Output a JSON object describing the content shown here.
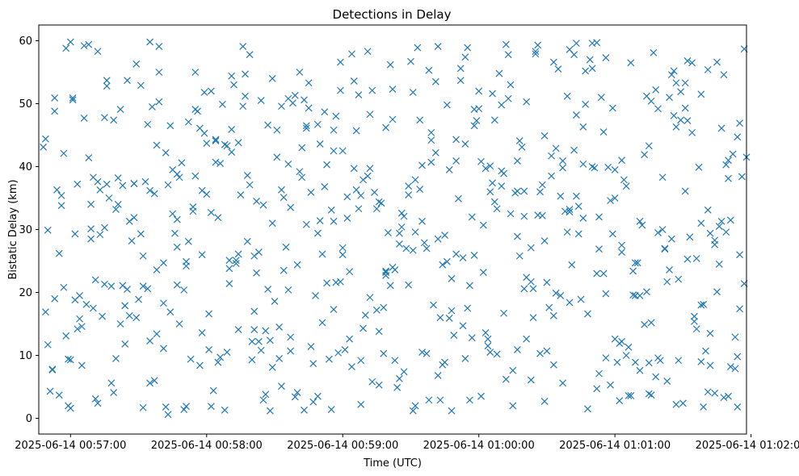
{
  "chart_data": {
    "type": "scatter",
    "title": "Detections in Delay",
    "xlabel": "Time (UTC)",
    "ylabel": "Bistatic Delay (km)",
    "marker": "x",
    "color": "#1f77b4",
    "grid": false,
    "legend": "none",
    "x_tick_labels": [
      "2025-06-14 00:57:00",
      "2025-06-14 00:58:00",
      "2025-06-14 00:59:00",
      "2025-06-14 01:00:00",
      "2025-06-14 01:01:00",
      "2025-06-14 01:02:00"
    ],
    "y_ticks": [
      0,
      10,
      20,
      30,
      40,
      50,
      60
    ],
    "xlim": [
      "2025-06-14 00:56:46",
      "2025-06-14 01:01:58"
    ],
    "ylim": [
      -2.5,
      62.5
    ],
    "x": [
      "00:56:49",
      "00:57:00",
      "00:57:12",
      "00:57:23",
      "00:57:35",
      "00:57:47",
      "00:57:58",
      "00:58:10",
      "00:58:21",
      "00:58:33",
      "00:58:44",
      "00:58:56",
      "00:59:08",
      "00:59:19",
      "00:59:31",
      "00:59:42",
      "00:59:54",
      "01:00:05",
      "01:00:17",
      "01:00:29",
      "01:00:40",
      "01:00:52",
      "01:01:03",
      "01:01:15",
      "01:01:27",
      "01:01:38",
      "01:01:50",
      "00:56:53",
      "00:57:05",
      "00:57:16",
      "00:57:28",
      "00:57:39",
      "00:57:51",
      "00:58:02",
      "00:58:14",
      "00:58:26",
      "00:58:37",
      "00:58:49",
      "00:59:00",
      "00:59:12",
      "00:59:23",
      "00:59:35",
      "00:59:47",
      "00:59:58",
      "01:00:10",
      "01:00:21",
      "01:00:33",
      "01:00:44",
      "01:00:56",
      "01:01:08",
      "01:01:19",
      "01:01:31",
      "01:01:42",
      "01:01:54",
      "00:56:57",
      "00:57:09",
      "00:57:20",
      "00:57:32",
      "00:57:43",
      "00:57:55",
      "00:58:06",
      "00:58:18",
      "00:58:29",
      "00:58:41",
      "00:58:53",
      "00:59:04",
      "00:59:16",
      "00:59:27",
      "00:59:39",
      "00:59:50",
      "01:00:02",
      "01:00:14",
      "01:00:25",
      "01:00:37",
      "01:00:48",
      "01:01:00",
      "01:01:11",
      "01:01:23",
      "01:01:35",
      "01:01:46",
      "01:01:57",
      "00:57:02",
      "00:57:14",
      "00:57:25",
      "00:57:37",
      "00:57:48",
      "00:58:00",
      "00:58:11",
      "00:58:23",
      "00:58:35",
      "00:58:46",
      "00:58:58",
      "00:59:09",
      "00:59:21",
      "00:59:32",
      "00:59:44",
      "00:59:56",
      "01:00:07",
      "01:00:19",
      "01:00:30",
      "01:00:42",
      "01:00:53",
      "01:01:05",
      "01:01:16",
      "01:01:28",
      "01:01:40",
      "01:01:51",
      "00:56:55",
      "00:57:07",
      "00:57:18",
      "00:57:30",
      "00:57:41",
      "00:57:53",
      "00:58:04",
      "00:58:16",
      "00:58:28",
      "00:58:39",
      "00:58:51",
      "00:59:02",
      "00:59:14",
      "00:59:25",
      "00:59:37",
      "00:59:48",
      "01:00:00",
      "01:00:12",
      "01:00:23",
      "01:00:35",
      "01:00:46",
      "01:00:58",
      "01:01:09",
      "01:01:21",
      "01:01:32",
      "01:01:44",
      "01:01:55",
      "00:56:51",
      "00:57:03",
      "00:57:15",
      "00:57:26",
      "00:57:38",
      "00:57:49",
      "00:58:01",
      "00:58:12",
      "00:58:24",
      "00:58:36",
      "00:58:47",
      "00:58:59",
      "00:59:10",
      "00:59:22",
      "00:59:33",
      "00:59:45",
      "00:59:56",
      "01:00:08",
      "01:00:20",
      "01:00:31",
      "01:00:43",
      "01:00:54",
      "01:01:06",
      "01:01:17",
      "01:01:29",
      "01:01:41",
      "01:01:52",
      "00:56:58",
      "00:57:10",
      "00:57:21",
      "00:57:33",
      "00:57:44",
      "00:57:56",
      "00:58:08",
      "00:58:19",
      "00:58:31",
      "00:58:42",
      "00:58:54",
      "00:59:05",
      "00:59:17",
      "00:59:29",
      "00:59:40",
      "00:59:52",
      "01:00:03",
      "01:00:15",
      "01:00:26",
      "01:00:38",
      "01:00:50",
      "01:01:01",
      "01:01:13",
      "01:01:24",
      "01:01:36",
      "01:01:47",
      "00:56:50",
      "00:57:01",
      "00:57:13",
      "00:57:24",
      "00:57:36",
      "00:57:47",
      "00:57:59",
      "00:58:11",
      "00:58:22",
      "00:58:34",
      "00:58:45",
      "00:58:57",
      "00:59:08",
      "00:59:20",
      "00:59:32",
      "00:59:43",
      "00:59:55",
      "01:00:06",
      "01:00:18",
      "01:00:29",
      "01:00:41",
      "01:00:53",
      "01:01:04",
      "01:01:16",
      "01:01:27",
      "01:01:39",
      "01:01:50",
      "00:56:54",
      "00:57:06",
      "00:57:17",
      "00:57:29",
      "00:57:41",
      "00:57:52",
      "00:58:04",
      "00:58:15",
      "00:58:27",
      "00:58:38",
      "00:58:50",
      "00:59:01",
      "00:59:13",
      "00:59:25",
      "00:59:36",
      "00:59:48",
      "00:59:59",
      "01:00:11",
      "01:00:23",
      "01:00:34",
      "01:00:46",
      "01:00:57",
      "01:01:09",
      "01:01:20",
      "01:01:32",
      "01:01:44",
      "01:01:55",
      "00:56:59",
      "00:57:11",
      "00:57:22",
      "00:57:34",
      "00:57:45",
      "00:57:57",
      "00:58:09",
      "00:58:20",
      "00:58:32",
      "00:58:43",
      "00:58:55",
      "00:59:06",
      "00:59:18",
      "00:59:29",
      "00:59:41",
      "00:59:53",
      "01:00:04",
      "01:00:16",
      "01:00:27",
      "01:00:39",
      "01:00:50",
      "01:01:02",
      "01:01:14",
      "01:01:25",
      "01:01:37",
      "01:01:48",
      "00:56:52",
      "00:57:04",
      "00:57:15",
      "00:57:27",
      "00:57:38",
      "00:57:50",
      "00:58:02",
      "00:58:13",
      "00:58:25",
      "00:58:36",
      "00:58:48",
      "00:58:59",
      "00:59:11",
      "00:59:22",
      "00:59:34",
      "00:59:46",
      "00:59:57",
      "01:00:09",
      "01:00:20",
      "01:00:32",
      "01:00:43",
      "01:00:55",
      "01:01:07",
      "01:01:18",
      "01:01:30",
      "01:01:41",
      "01:01:53",
      "00:56:56",
      "00:57:08",
      "00:57:19",
      "00:57:31",
      "00:57:42",
      "00:57:54",
      "00:58:05",
      "00:58:17",
      "00:58:29",
      "00:58:40",
      "00:58:52",
      "00:59:03",
      "00:59:15",
      "00:59:26",
      "00:59:38",
      "00:59:50",
      "01:00:01",
      "01:00:13",
      "01:00:24",
      "01:00:36",
      "01:00:47",
      "01:00:59",
      "01:01:11",
      "01:01:22",
      "01:01:34",
      "01:01:45",
      "01:01:56",
      "00:57:01",
      "00:57:12",
      "00:57:24",
      "00:57:35",
      "00:57:47",
      "00:57:59",
      "00:58:10",
      "00:58:22",
      "00:58:33",
      "00:58:45",
      "00:58:56",
      "00:59:08",
      "00:59:19",
      "00:59:31",
      "00:59:43",
      "00:59:54",
      "01:00:06",
      "01:00:17",
      "01:00:29",
      "01:00:40",
      "01:00:52",
      "01:01:03",
      "01:01:15",
      "01:01:27",
      "01:01:38",
      "01:01:50",
      "00:56:48",
      "00:57:00",
      "00:57:11",
      "00:57:23",
      "00:57:35",
      "00:57:46",
      "00:57:58",
      "00:58:09",
      "00:58:21",
      "00:58:32",
      "00:58:44",
      "00:58:56",
      "00:59:07",
      "00:59:19",
      "00:59:30",
      "00:59:42",
      "00:59:53",
      "01:00:05",
      "01:00:17",
      "01:00:28",
      "01:00:40",
      "01:00:51",
      "01:01:03",
      "01:01:14",
      "01:01:26",
      "01:01:38",
      "01:01:49",
      "00:56:53",
      "00:57:04",
      "00:57:16",
      "00:57:28",
      "00:57:39",
      "00:57:51",
      "00:58:02",
      "00:58:14",
      "00:58:25",
      "00:58:37",
      "00:58:49",
      "00:59:00",
      "00:59:12",
      "00:59:23",
      "00:59:35",
      "00:59:46",
      "00:59:58",
      "01:00:10",
      "01:00:21",
      "01:00:33",
      "01:00:44",
      "01:00:56",
      "01:01:07",
      "01:01:19",
      "01:01:31",
      "01:01:42",
      "01:01:54",
      "00:56:57",
      "00:57:09",
      "00:57:20",
      "00:57:32",
      "00:57:43",
      "00:57:55",
      "00:58:06",
      "00:58:18",
      "00:58:29",
      "00:58:41",
      "00:58:52",
      "00:59:04",
      "00:59:16",
      "00:59:27",
      "00:59:39",
      "00:59:50",
      "01:00:02",
      "01:00:13",
      "01:00:25",
      "01:00:37",
      "01:00:48",
      "01:01:00",
      "01:01:11",
      "01:01:23",
      "01:01:34",
      "01:01:46",
      "01:01:58",
      "00:56:50",
      "00:57:02",
      "00:57:13",
      "00:57:25",
      "00:57:37",
      "00:57:48",
      "00:58:00",
      "00:58:11",
      "00:58:23",
      "00:58:34",
      "00:58:46",
      "00:58:57",
      "00:59:09",
      "00:59:21",
      "00:59:32",
      "00:59:44",
      "00:59:55",
      "01:00:07",
      "01:00:18",
      "01:00:30",
      "01:00:42",
      "01:00:53",
      "01:01:05",
      "01:01:16",
      "01:01:28",
      "01:01:39",
      "01:01:51",
      "00:56:55",
      "00:57:06",
      "00:57:18",
      "00:57:29",
      "00:57:41",
      "00:57:52",
      "00:58:04",
      "00:58:16",
      "00:58:27",
      "00:58:39",
      "00:58:50",
      "00:59:02",
      "00:59:13",
      "00:59:25",
      "00:59:37",
      "00:59:48",
      "01:00:00",
      "01:00:11",
      "01:00:23",
      "01:00:34",
      "01:00:46",
      "01:00:58",
      "01:01:09",
      "01:01:21",
      "01:01:32",
      "01:01:44",
      "01:01:55",
      "00:56:59",
      "00:57:10",
      "00:57:22",
      "00:57:34",
      "00:57:45",
      "00:57:57",
      "00:58:08",
      "00:58:20",
      "00:58:31",
      "00:58:43",
      "00:58:55",
      "00:59:06",
      "00:59:18",
      "00:59:29",
      "00:59:41",
      "00:59:52",
      "01:00:04",
      "01:00:15",
      "01:00:27",
      "01:00:39",
      "01:00:50",
      "01:01:02",
      "01:01:13",
      "01:01:25",
      "01:01:36",
      "01:01:48",
      "00:56:52",
      "00:57:03",
      "00:57:15",
      "00:57:26",
      "00:57:38",
      "00:57:50",
      "00:58:01",
      "00:58:13",
      "00:58:24",
      "00:58:36",
      "00:58:47",
      "00:58:59",
      "00:59:11",
      "00:59:22",
      "00:59:34",
      "00:59:45",
      "00:59:57",
      "01:00:08",
      "01:00:20",
      "01:00:32",
      "01:00:43",
      "01:00:55",
      "01:01:06",
      "01:01:18",
      "01:01:29",
      "01:01:41",
      "01:01:53",
      "00:56:56",
      "00:57:08",
      "00:57:19",
      "00:57:31",
      "00:57:42",
      "00:57:54",
      "00:58:05",
      "00:58:17",
      "00:58:28",
      "00:58:40",
      "00:58:51",
      "00:59:03",
      "00:59:15",
      "00:59:26",
      "00:59:38",
      "00:59:49",
      "01:00:01",
      "01:00:12",
      "01:00:24",
      "01:00:36",
      "01:00:47",
      "01:00:59",
      "01:01:10",
      "01:01:22",
      "01:01:33",
      "01:01:45",
      "01:01:57",
      "00:56:49",
      "00:57:00",
      "00:57:12",
      "00:57:24",
      "00:57:35",
      "00:57:47",
      "00:57:58",
      "00:58:10",
      "00:58:21",
      "00:58:33",
      "00:58:44",
      "00:58:56",
      "00:59:07",
      "00:59:19",
      "00:59:31",
      "00:59:42",
      "00:59:54",
      "01:00:05",
      "01:00:17",
      "01:00:28",
      "01:00:40",
      "01:00:52",
      "01:01:03",
      "01:01:15",
      "01:01:26",
      "01:01:38",
      "01:01:49",
      "00:56:53",
      "00:57:05",
      "00:57:16",
      "00:57:28",
      "00:57:39",
      "00:57:51",
      "00:58:03",
      "00:58:14",
      "00:58:26",
      "00:58:37",
      "00:58:49",
      "00:59:00",
      "00:59:12",
      "00:59:24",
      "00:59:35",
      "00:59:47",
      "00:59:58",
      "01:00:10",
      "01:00:21",
      "01:00:33",
      "01:00:45",
      "01:00:56",
      "01:01:08",
      "01:01:19",
      "01:01:31",
      "01:01:42",
      "01:01:54",
      "00:56:58",
      "00:57:09",
      "00:57:21",
      "00:57:32",
      "00:57:44",
      "00:57:55",
      "00:58:07",
      "00:58:19",
      "00:58:30",
      "00:58:42",
      "00:58:53",
      "00:59:05",
      "00:59:16",
      "00:59:28",
      "00:59:39",
      "00:59:51",
      "01:00:03",
      "01:00:14",
      "01:00:26",
      "01:00:37",
      "01:00:49",
      "01:01:00",
      "01:01:12",
      "01:01:24",
      "01:01:35",
      "01:01:47"
    ],
    "y": [
      16.9,
      59.8,
      2.4,
      37.0,
      36.2,
      21.2,
      13.6,
      23.8,
      17.0,
      49.6,
      46.5,
      17.3,
      35.4,
      46.2,
      51.8,
      6.8,
      9.5,
      36.0,
      28.9,
      44.9,
      32.8,
      23.0,
      41.0,
      3.9,
      2.2,
      9.0,
      3.5,
      50.9,
      8.4,
      53.7,
      31.9,
      50.3,
      24.9,
      1.9,
      26.1,
      3.8,
      33.5,
      46.7,
      42.5,
      48.3,
      23.6,
      31.3,
      39.5,
      49.1,
      39.3,
      12.6,
      8.5,
      33.7,
      19.8,
      19.6,
      49.2,
      53.3,
      8.4,
      44.7,
      20.8,
      30.1,
      9.5,
      25.8,
      0.6,
      38.5,
      40.5,
      38.6,
      31.0,
      39.2,
      21.5,
      8.2,
      13.8,
      32.1,
      44.2,
      26.1,
      23.2,
      53.0,
      57.9,
      39.8,
      16.6,
      12.6,
      7.6,
      5.9,
      15.4,
      30.5,
      21.4,
      18.8,
      16.2,
      53.7,
      35.7,
      15.0,
      35.6,
      54.4,
      12.2,
      27.2,
      11.4,
      10.4,
      37.9,
      21.1,
      29.6,
      24.4,
      2.9,
      47.4,
      43.1,
      21.6,
      57.8,
      32.0,
      10.0,
      15.2,
      9.2,
      10.7,
      8.2,
      26.2,
      18.1,
      21.0,
      18.9,
      18.3,
      9.4,
      44.3,
      49.6,
      1.2,
      3.4,
      26.1,
      31.8,
      35.9,
      27.7,
      10.3,
      17.1,
      52.0,
      59.4,
      27.1,
      55.5,
      31.8,
      34.6,
      24.7,
      38.3,
      47.3,
      28.3,
      17.4,
      4.3,
      37.2,
      21.3,
      31.3,
      13.4,
      40.6,
      16.6,
      53.0,
      10.8,
      20.4,
      2.6,
      21.7,
      16.4,
      24.0,
      58.9,
      8.9,
      21.1,
      10.2,
      32.1,
      17.6,
      35.3,
      51.0,
      3.6,
      58.1,
      47.4,
      4.2,
      42.0,
      58.8,
      17.5,
      34.0,
      37.6,
      46.5,
      48.8,
      43.5,
      57.8,
      45.8,
      43.0,
      9.4,
      53.6,
      34.2,
      21.2,
      18.0,
      53.7,
      13.6,
      2.0,
      32.3,
      32.9,
      40.0,
      8.9,
      41.9,
      51.0,
      25.4,
      46.1,
      29.9,
      50.6,
      29.2,
      17.9,
      49.5,
      31.6,
      51.8,
      42.3,
      23.1,
      23.5,
      49.3,
      48.0,
      2.2,
      29.5,
      37.9,
      16.0,
      58.9,
      37.4,
      44.1,
      28.2,
      24.4,
      7.1,
      37.9,
      50.4,
      53.3,
      1.8,
      38.1,
      36.3,
      47.7,
      35.0,
      56.3,
      24.7,
      28.1,
      40.7,
      35.5,
      46.6,
      50.1,
      31.4,
      10.9,
      5.8,
      6.3,
      27.9,
      1.2,
      47.3,
      38.9,
      6.1,
      42.9,
      40.4,
      39.9,
      8.9,
      9.2,
      25.3,
      4.0,
      46.9,
      9.4,
      22.0,
      49.1,
      20.6,
      32.5,
      46.1,
      43.3,
      12.2,
      14.5,
      50.6,
      1.4,
      36.3,
      10.3,
      35.5,
      53.5,
      25.5,
      11.5,
      35.8,
      10.3,
      29.6,
      55.6,
      11.9,
      51.2,
      54.6,
      39.9,
      54.6,
      7.7,
      19.5,
      47.8,
      28.2,
      43.4,
      20.4,
      52.0,
      24.6,
      2.9,
      50.8,
      19.5,
      52.1,
      38.5,
      47.5,
      36.4,
      24.9,
      12.8,
      54.8,
      20.6,
      38.5,
      59.6,
      23.0,
      3.6,
      6.6,
      2.4,
      33.1,
      7.9,
      35.4,
      59.4,
      4.1,
      29.3,
      42.2,
      32.9,
      31.9,
      51.2,
      54.0,
      24.4,
      48.7,
      12.6,
      33.3,
      32.6,
      2.9,
      40.9,
      40.8,
      57.8,
      16.0,
      19.5,
      49.9,
      49.3,
      19.5,
      26.9,
      45.4,
      56.6,
      38.4,
      50.9,
      58.3,
      11.8,
      5.6,
      27.2,
      45.3,
      21.4,
      34.5,
      36.3,
      53.3,
      45.8,
      9.2,
      23.2,
      1.2,
      2.9,
      57.4,
      51.6,
      40.9,
      2.7,
      33.2,
      4.7,
      26.4,
      43.3,
      46.3,
      51.5,
      41.0,
      43.1,
      9.3,
      3.1,
      21.1,
      59.8,
      29.4,
      26.0,
      10.5,
      14.1,
      9.5,
      46.1,
      31.3,
      33.3,
      23.4,
      56.7,
      59.1,
      14.7,
      40.1,
      10.9,
      32.2,
      58.6,
      39.8,
      27.5,
      20.1,
      48.1,
      31.0,
      29.6,
      48.8,
      15.8,
      37.2,
      37.3,
      59.1,
      24.2,
      32.7,
      43.8,
      33.9,
      10.7,
      29.4,
      27.1,
      19.2,
      9.2,
      40.2,
      49.8,
      46.5,
      49.8,
      22.4,
      16.3,
      29.3,
      9.6,
      56.5,
      29.5,
      49.3,
      29.4,
      9.8,
      42.1,
      34.0,
      33.2,
      1.7,
      37.1,
      55.0,
      9.7,
      28.1,
      8.1,
      55.0,
      36.8,
      57.9,
      5.3,
      7.4,
      45.4,
      44.3,
      30.7,
      50.8,
      58.3,
      40.9,
      1.5,
      39.5,
      31.3,
      21.7,
      56.5,
      24.5,
      41.5,
      11.7,
      29.3,
      36.3,
      20.5,
      6.0,
      38.3,
      43.7,
      45.9,
      26.4,
      35.1,
      35.9,
      21.6,
      14.3,
      56.2,
      2.0,
      8.5,
      17.5,
      34.4,
      25.8,
      10.7,
      42.6,
      26.9,
      36.9,
      3.7,
      22.1,
      18.1,
      31.5,
      3.7,
      59.2,
      5.6,
      16.0,
      11.1,
      47.1,
      44.1,
      59.1,
      20.5,
      51.3,
      43.6,
      35.2,
      52.1,
      29.4,
      27.0,
      22.2,
      49.2,
      16.7,
      21.7,
      19.9,
      46.3,
      5.3,
      19.5,
      30.0,
      56.8,
      27.6,
      26.0,
      2.0,
      38.3,
      15.0,
      46.7,
      39.5,
      8.4,
      1.3,
      9.3,
      41.5,
      1.3,
      33.1,
      45.7,
      17.6,
      36.9,
      42.2,
      55.6,
      12.6,
      7.6,
      36.0,
      51.2,
      59.6,
      2.8,
      14.9,
      28.5,
      14.2,
      3.3,
      7.8,
      14.2,
      30.3,
      16.3,
      23.6,
      1.4,
      10.9,
      25.1,
      50.5,
      40.4,
      8.7,
      56.6,
      58.3,
      52.3,
      47.4,
      29.1,
      32.0,
      33.3,
      36.1,
      41.7,
      48.2,
      45.5,
      11.3,
      52.2,
      51.9,
      55.4,
      12.9,
      33.8,
      41.4,
      47.4,
      52.9,
      1.8,
      33.6,
      8.9,
      54.7,
      12.4,
      4.1,
      15.2,
      23.3,
      17.2,
      30.4,
      55.3,
      13.2,
      3.5,
      6.2,
      20.6,
      35.3,
      55.2,
      29.3,
      24.7,
      27.0,
      28.8,
      20.1,
      58.7,
      44.4,
      1.6,
      37.6,
      17.9,
      12.3,
      38.8,
      36.2,
      25.1,
      25.8,
      5.1,
      30.8,
      42.5,
      51.4,
      22.7,
      26.7,
      28.5,
      43.6,
      10.5,
      36.1,
      37.1,
      18.4,
      59.7,
      12.2,
      8.8,
      55.2,
      18.0,
      40.3,
      19.0,
      14.6,
      52.8,
      37.3,
      55.0,
      1.9,
      4.4,
      14.1,
      13.9,
      12.9,
      3.5,
      26.0,
      39.7,
      4.9,
      10.5,
      15.9,
      25.9,
      36.9,
      50.3,
      56.6,
      18.9,
      57.3,
      23.4,
      9.6,
      36.1,
      13.5,
      1.8,
      13.1,
      28.5,
      38.2,
      21.0,
      16.9,
      49.1,
      49.9,
      37.1,
      18.6,
      38.3,
      40.3,
      39.7,
      34.4,
      27.0,
      40.7,
      34.9,
      39.7,
      32.5,
      59.3,
      5.6,
      57.0,
      35.0,
      30.7,
      23.6,
      16.2,
      31.3
    ]
  }
}
